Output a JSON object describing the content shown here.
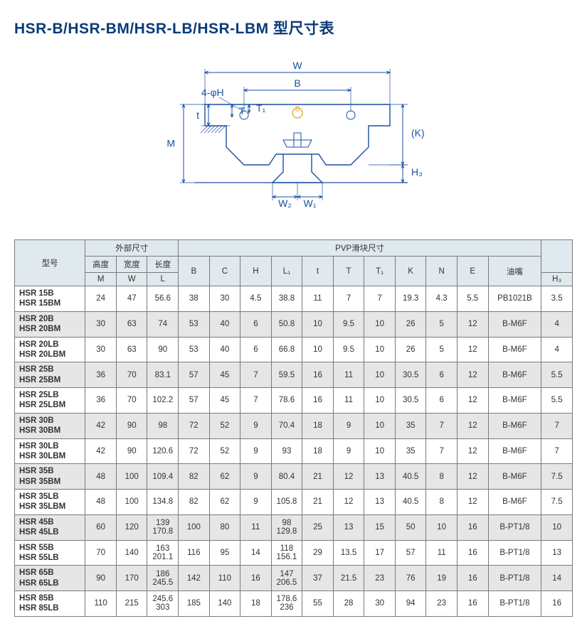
{
  "title": "HSR-B/HSR-BM/HSR-LB/HSR-LBM 型尺寸表",
  "diagram_labels": {
    "holes": "4-φH",
    "W": "W",
    "B": "B",
    "T": "T",
    "T1": "T₁",
    "t": "t",
    "M": "M",
    "K": "(K)",
    "H3": "H₃",
    "W2": "W₂",
    "W1": "W₁"
  },
  "diagram_style": {
    "stroke": "#1a4fa0",
    "stroke_width": 1.4,
    "dim_stroke": "#1a4fa0",
    "font_size": 14,
    "font_color": "#1a4fa0",
    "hatch_color": "#1a4fa0"
  },
  "header": {
    "model": "型号",
    "ext": "外部尺寸",
    "pvp": "PVP滑块尺寸",
    "height": "高度",
    "width": "宽度",
    "length": "长度",
    "oil": "油嘴",
    "sym": {
      "M": "M",
      "W": "W",
      "L": "L",
      "B": "B",
      "C": "C",
      "H": "H",
      "L1": "L₁",
      "t": "t",
      "T": "T",
      "T1": "T₁",
      "K": "K",
      "N": "N",
      "E": "E",
      "H3": "H₃"
    }
  },
  "rows": [
    {
      "models": [
        "HSR 15B",
        "HSR 15BM"
      ],
      "shade": false,
      "M": "24",
      "W": "47",
      "L": "56.6",
      "B": "38",
      "C": "30",
      "H": "4.5",
      "L1": "38.8",
      "t": "11",
      "T": "7",
      "T1": "7",
      "K": "19.3",
      "N": "4.3",
      "E": "5.5",
      "oil": "PB1021B",
      "H3": "3.5"
    },
    {
      "models": [
        "HSR 20B",
        "HSR 20BM"
      ],
      "shade": true,
      "M": "30",
      "W": "63",
      "L": "74",
      "B": "53",
      "C": "40",
      "H": "6",
      "L1": "50.8",
      "t": "10",
      "T": "9.5",
      "T1": "10",
      "K": "26",
      "N": "5",
      "E": "12",
      "oil": "B-M6F",
      "H3": "4"
    },
    {
      "models": [
        "HSR 20LB",
        "HSR 20LBM"
      ],
      "shade": false,
      "M": "30",
      "W": "63",
      "L": "90",
      "B": "53",
      "C": "40",
      "H": "6",
      "L1": "66.8",
      "t": "10",
      "T": "9.5",
      "T1": "10",
      "K": "26",
      "N": "5",
      "E": "12",
      "oil": "B-M6F",
      "H3": "4"
    },
    {
      "models": [
        "HSR 25B",
        "HSR 25BM"
      ],
      "shade": true,
      "M": "36",
      "W": "70",
      "L": "83.1",
      "B": "57",
      "C": "45",
      "H": "7",
      "L1": "59.5",
      "t": "16",
      "T": "11",
      "T1": "10",
      "K": "30.5",
      "N": "6",
      "E": "12",
      "oil": "B-M6F",
      "H3": "5.5"
    },
    {
      "models": [
        "HSR 25LB",
        "HSR 25LBM"
      ],
      "shade": false,
      "M": "36",
      "W": "70",
      "L": "102.2",
      "B": "57",
      "C": "45",
      "H": "7",
      "L1": "78.6",
      "t": "16",
      "T": "11",
      "T1": "10",
      "K": "30.5",
      "N": "6",
      "E": "12",
      "oil": "B-M6F",
      "H3": "5.5"
    },
    {
      "models": [
        "HSR 30B",
        "HSR 30BM"
      ],
      "shade": true,
      "M": "42",
      "W": "90",
      "L": "98",
      "B": "72",
      "C": "52",
      "H": "9",
      "L1": "70.4",
      "t": "18",
      "T": "9",
      "T1": "10",
      "K": "35",
      "N": "7",
      "E": "12",
      "oil": "B-M6F",
      "H3": "7"
    },
    {
      "models": [
        "HSR 30LB",
        "HSR 30LBM"
      ],
      "shade": false,
      "M": "42",
      "W": "90",
      "L": "120.6",
      "B": "72",
      "C": "52",
      "H": "9",
      "L1": "93",
      "t": "18",
      "T": "9",
      "T1": "10",
      "K": "35",
      "N": "7",
      "E": "12",
      "oil": "B-M6F",
      "H3": "7"
    },
    {
      "models": [
        "HSR 35B",
        "HSR 35BM"
      ],
      "shade": true,
      "M": "48",
      "W": "100",
      "L": "109.4",
      "B": "82",
      "C": "62",
      "H": "9",
      "L1": "80.4",
      "t": "21",
      "T": "12",
      "T1": "13",
      "K": "40.5",
      "N": "8",
      "E": "12",
      "oil": "B-M6F",
      "H3": "7.5"
    },
    {
      "models": [
        "HSR 35LB",
        "HSR 35LBM"
      ],
      "shade": false,
      "M": "48",
      "W": "100",
      "L": "134.8",
      "B": "82",
      "C": "62",
      "H": "9",
      "L1": "105.8",
      "t": "21",
      "T": "12",
      "T1": "13",
      "K": "40.5",
      "N": "8",
      "E": "12",
      "oil": "B-M6F",
      "H3": "7.5"
    },
    {
      "models": [
        "HSR 45B",
        "HSR 45LB"
      ],
      "shade": true,
      "M": "60",
      "W": "120",
      "L": "139\n170.8",
      "B": "100",
      "C": "80",
      "H": "11",
      "L1": "98\n129.8",
      "t": "25",
      "T": "13",
      "T1": "15",
      "K": "50",
      "N": "10",
      "E": "16",
      "oil": "B-PT1/8",
      "H3": "10"
    },
    {
      "models": [
        "HSR 55B",
        "HSR 55LB"
      ],
      "shade": false,
      "M": "70",
      "W": "140",
      "L": "163\n201.1",
      "B": "116",
      "C": "95",
      "H": "14",
      "L1": "118\n156.1",
      "t": "29",
      "T": "13.5",
      "T1": "17",
      "K": "57",
      "N": "11",
      "E": "16",
      "oil": "B-PT1/8",
      "H3": "13"
    },
    {
      "models": [
        "HSR 65B",
        "HSR 65LB"
      ],
      "shade": true,
      "M": "90",
      "W": "170",
      "L": "186\n245.5",
      "B": "142",
      "C": "110",
      "H": "16",
      "L1": "147\n206.5",
      "t": "37",
      "T": "21.5",
      "T1": "23",
      "K": "76",
      "N": "19",
      "E": "16",
      "oil": "B-PT1/8",
      "H3": "14"
    },
    {
      "models": [
        "HSR 85B",
        "HSR 85LB"
      ],
      "shade": false,
      "M": "110",
      "W": "215",
      "L": "245.6\n303",
      "B": "185",
      "C": "140",
      "H": "18",
      "L1": "178.6\n236",
      "t": "55",
      "T": "28",
      "T1": "30",
      "K": "94",
      "N": "23",
      "E": "16",
      "oil": "B-PT1/8",
      "H3": "16"
    }
  ],
  "colkeys": [
    "M",
    "W",
    "L",
    "B",
    "C",
    "H",
    "L1",
    "t",
    "T",
    "T1",
    "K",
    "N",
    "E",
    "oil",
    "H3"
  ]
}
